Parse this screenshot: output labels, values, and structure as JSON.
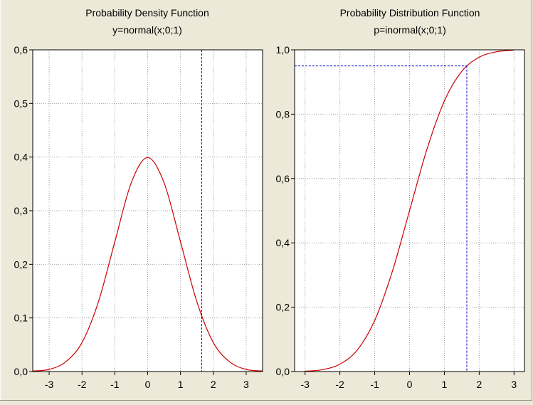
{
  "colors": {
    "background": "#ece9d8",
    "plot_background": "#ffffff",
    "curve": "#cc0000",
    "reference_line": "#0000cc",
    "grid": "#a0a0a0"
  },
  "chart_data": [
    {
      "type": "line",
      "title": "Probability Density Function",
      "subtitle": "y=normal(x;0;1)",
      "xlabel": "",
      "ylabel": "",
      "xlim": [
        -3.5,
        3.5
      ],
      "ylim": [
        0,
        0.6
      ],
      "x_ticks": [
        -3,
        -2,
        -1,
        0,
        1,
        2,
        3
      ],
      "x_tick_labels": [
        "-3",
        "-2",
        "-1",
        "0",
        "1",
        "2",
        "3"
      ],
      "y_ticks": [
        0,
        0.1,
        0.2,
        0.3,
        0.4,
        0.5,
        0.6
      ],
      "y_tick_labels": [
        "0,0",
        "0,1",
        "0,2",
        "0,3",
        "0,4",
        "0,5",
        "0,6"
      ],
      "grid": true,
      "series": [
        {
          "x": [
            -3.5,
            -3.0,
            -2.5,
            -2.0,
            -1.5,
            -1.0,
            -0.5,
            0.0,
            0.5,
            1.0,
            1.5,
            2.0,
            2.5,
            3.0,
            3.5
          ],
          "y": [
            0.001,
            0.004,
            0.018,
            0.054,
            0.13,
            0.242,
            0.352,
            0.399,
            0.352,
            0.242,
            0.13,
            0.054,
            0.018,
            0.004,
            0.001
          ]
        }
      ],
      "reference_lines": {
        "vertical_x": 1.645,
        "y": 0.103
      }
    },
    {
      "type": "line",
      "title": "Probability Distribution Function",
      "subtitle": "p=inormal(x;0;1)",
      "xlabel": "",
      "ylabel": "",
      "xlim": [
        -3.3,
        3.3
      ],
      "ylim": [
        0,
        1.0
      ],
      "x_ticks": [
        -3,
        -2,
        -1,
        0,
        1,
        2,
        3
      ],
      "x_tick_labels": [
        "-3",
        "-2",
        "-1",
        "0",
        "1",
        "2",
        "3"
      ],
      "y_ticks": [
        0,
        0.2,
        0.4,
        0.6,
        0.8,
        1.0
      ],
      "y_tick_labels": [
        "0,0",
        "0,2",
        "0,4",
        "0,6",
        "0,8",
        "1,0"
      ],
      "grid": true,
      "series": [
        {
          "x": [
            -3.0,
            -2.5,
            -2.0,
            -1.5,
            -1.0,
            -0.5,
            0.0,
            0.5,
            1.0,
            1.5,
            2.0,
            2.5,
            3.0
          ],
          "y": [
            0.001,
            0.006,
            0.023,
            0.067,
            0.159,
            0.309,
            0.5,
            0.691,
            0.841,
            0.933,
            0.977,
            0.994,
            0.999
          ]
        }
      ],
      "reference_lines": {
        "vertical_x": 1.645,
        "y": 0.95
      }
    }
  ]
}
